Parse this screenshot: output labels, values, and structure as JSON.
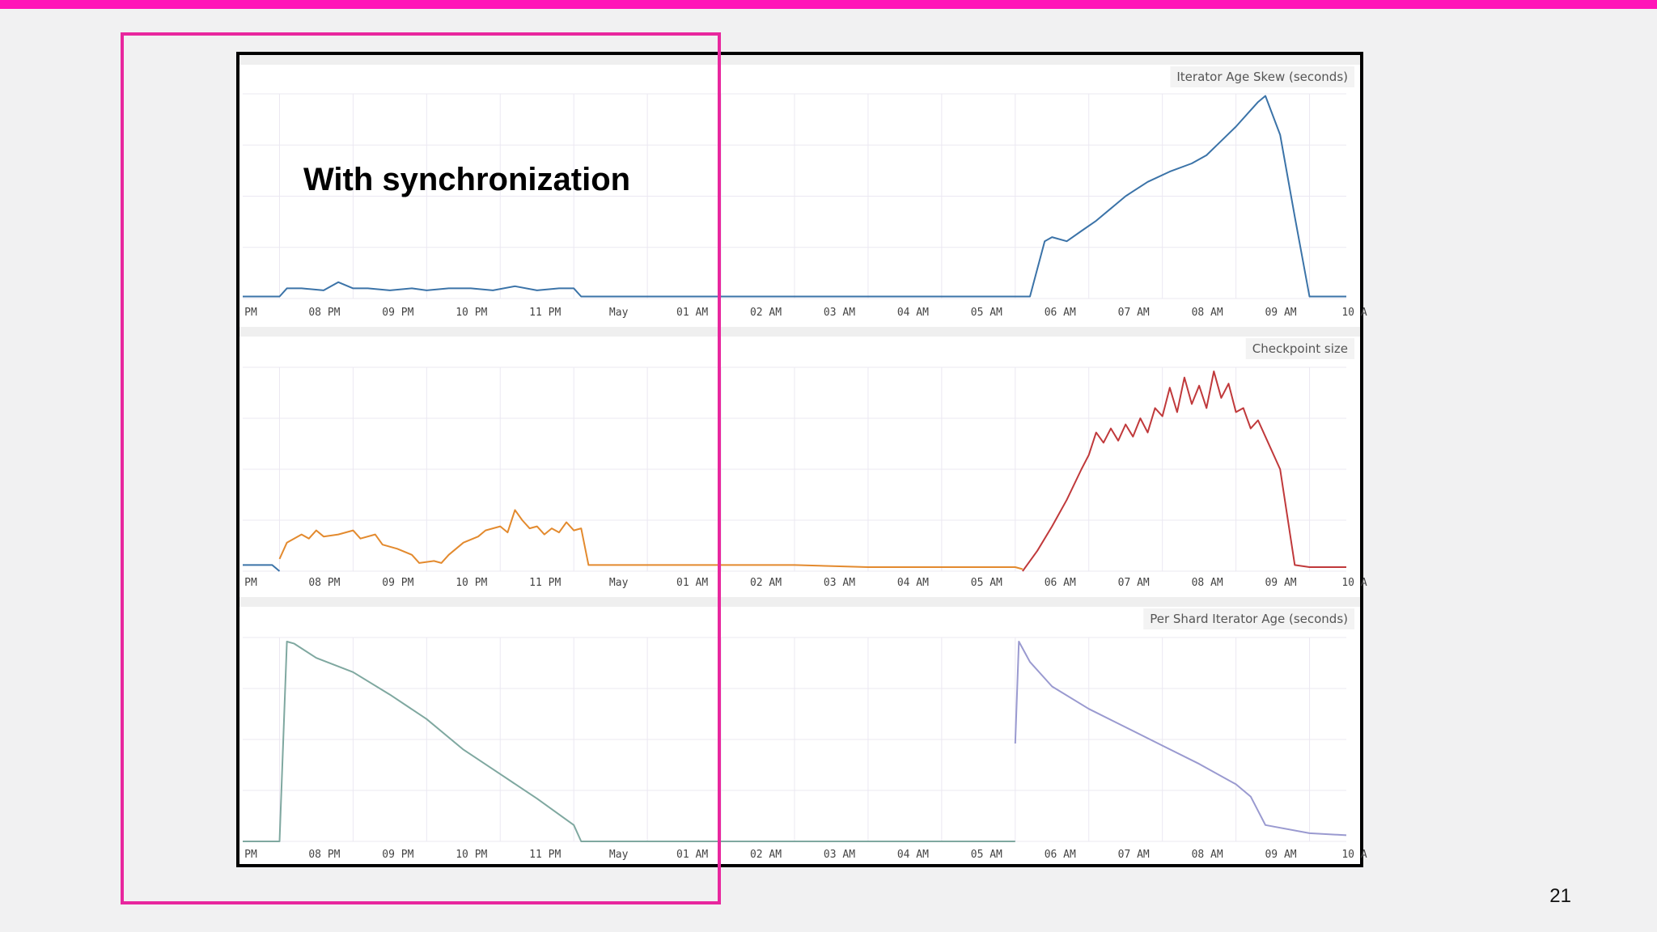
{
  "slide": {
    "annotation": "With synchronization",
    "page_number": "21"
  },
  "colors": {
    "accent_pink": "#e8279e",
    "skew_line": "#3b73a8",
    "checkpoint_orange": "#e38a2e",
    "checkpoint_red": "#c0393b"
  },
  "chart_data": [
    {
      "type": "line",
      "title": "Iterator Age Skew (seconds)",
      "x_tick_labels": [
        "PM",
        "08 PM",
        "09 PM",
        "10 PM",
        "11 PM",
        "May",
        "01 AM",
        "02 AM",
        "03 AM",
        "04 AM",
        "05 AM",
        "06 AM",
        "07 AM",
        "08 AM",
        "09 AM",
        "10 A"
      ],
      "x_range_hours": [
        19.5,
        34.5
      ],
      "ylim": [
        0,
        100
      ],
      "grid": true,
      "series": [
        {
          "color": "#3b73a8",
          "x": [
            19.5,
            20.0,
            20.1,
            20.3,
            20.6,
            20.8,
            21.0,
            21.2,
            21.5,
            21.8,
            22.0,
            22.3,
            22.6,
            22.9,
            23.2,
            23.5,
            23.8,
            24.0,
            24.1,
            24.5,
            25.0,
            26.0,
            27.0,
            28.0,
            29.0,
            30.0,
            30.2,
            30.4,
            30.5,
            30.7,
            30.9,
            31.1,
            31.3,
            31.5,
            31.8,
            32.1,
            32.4,
            32.6,
            32.8,
            33.0,
            33.2,
            33.3,
            33.4,
            33.6,
            33.8,
            34.0,
            34.5
          ],
          "y": [
            1,
            1,
            5,
            5,
            4,
            8,
            5,
            5,
            4,
            5,
            4,
            5,
            5,
            4,
            6,
            4,
            5,
            5,
            1,
            1,
            1,
            1,
            1,
            1,
            1,
            1,
            1,
            28,
            30,
            28,
            33,
            38,
            44,
            50,
            57,
            62,
            66,
            70,
            77,
            84,
            92,
            96,
            99,
            80,
            40,
            1,
            1
          ]
        }
      ]
    },
    {
      "type": "line",
      "title": "Checkpoint size",
      "x_tick_labels": [
        "PM",
        "08 PM",
        "09 PM",
        "10 PM",
        "11 PM",
        "May",
        "01 AM",
        "02 AM",
        "03 AM",
        "04 AM",
        "05 AM",
        "06 AM",
        "07 AM",
        "08 AM",
        "09 AM",
        "10 A"
      ],
      "x_range_hours": [
        19.5,
        34.5
      ],
      "ylim": [
        0,
        100
      ],
      "grid": true,
      "series": [
        {
          "color": "#3b73a8",
          "x": [
            19.5,
            19.9,
            20.0
          ],
          "y": [
            3,
            3,
            0
          ]
        },
        {
          "color": "#e38a2e",
          "x": [
            20.0,
            20.1,
            20.3,
            20.4,
            20.5,
            20.6,
            20.8,
            21.0,
            21.1,
            21.3,
            21.4,
            21.6,
            21.8,
            21.9,
            22.1,
            22.2,
            22.3,
            22.5,
            22.7,
            22.8,
            23.0,
            23.1,
            23.2,
            23.3,
            23.4,
            23.5,
            23.6,
            23.7,
            23.8,
            23.9,
            24.0,
            24.1,
            24.2,
            25.0,
            26.0,
            27.0,
            28.0,
            29.0,
            30.0,
            30.1
          ],
          "y": [
            6,
            14,
            18,
            16,
            20,
            17,
            18,
            20,
            16,
            18,
            13,
            11,
            8,
            4,
            5,
            4,
            8,
            14,
            17,
            20,
            22,
            19,
            30,
            25,
            21,
            22,
            18,
            21,
            19,
            24,
            20,
            21,
            3,
            3,
            3,
            3,
            2,
            2,
            2,
            1
          ]
        },
        {
          "color": "#c0393b",
          "x": [
            30.1,
            30.3,
            30.5,
            30.7,
            30.9,
            31.0,
            31.1,
            31.2,
            31.3,
            31.4,
            31.5,
            31.6,
            31.7,
            31.8,
            31.9,
            32.0,
            32.1,
            32.2,
            32.3,
            32.4,
            32.5,
            32.6,
            32.7,
            32.8,
            32.9,
            33.0,
            33.1,
            33.2,
            33.3,
            33.4,
            33.6,
            33.8,
            34.0,
            34.5
          ],
          "y": [
            0,
            10,
            22,
            35,
            50,
            57,
            68,
            63,
            70,
            64,
            72,
            66,
            75,
            68,
            80,
            76,
            90,
            78,
            95,
            82,
            91,
            80,
            98,
            85,
            92,
            78,
            80,
            70,
            74,
            66,
            50,
            3,
            2,
            2
          ]
        }
      ]
    },
    {
      "type": "line",
      "title": "Per Shard Iterator Age (seconds)",
      "x_tick_labels": [
        "PM",
        "08 PM",
        "09 PM",
        "10 PM",
        "11 PM",
        "May",
        "01 AM",
        "02 AM",
        "03 AM",
        "04 AM",
        "05 AM",
        "06 AM",
        "07 AM",
        "08 AM",
        "09 AM",
        "10 A"
      ],
      "x_range_hours": [
        19.5,
        34.5
      ],
      "ylim": [
        0,
        100
      ],
      "grid": true,
      "series": [
        {
          "color": "#7fa8a0",
          "x": [
            19.5,
            20.0,
            20.1,
            20.2,
            20.5,
            21.0,
            21.5,
            22.0,
            22.5,
            23.0,
            23.5,
            24.0,
            24.1,
            25.0,
            26.0,
            27.0,
            28.0,
            29.0,
            30.0
          ],
          "y": [
            0,
            0,
            98,
            97,
            90,
            83,
            72,
            60,
            45,
            33,
            21,
            8,
            0,
            0,
            0,
            0,
            0,
            0,
            0
          ]
        },
        {
          "color": "#9a9ad0",
          "x": [
            30.0,
            30.05,
            30.2,
            30.5,
            31.0,
            31.5,
            32.0,
            32.5,
            33.0,
            33.2,
            33.4,
            34.0,
            34.5
          ],
          "y": [
            48,
            98,
            88,
            76,
            65,
            56,
            47,
            38,
            28,
            22,
            8,
            4,
            3
          ]
        }
      ]
    }
  ]
}
